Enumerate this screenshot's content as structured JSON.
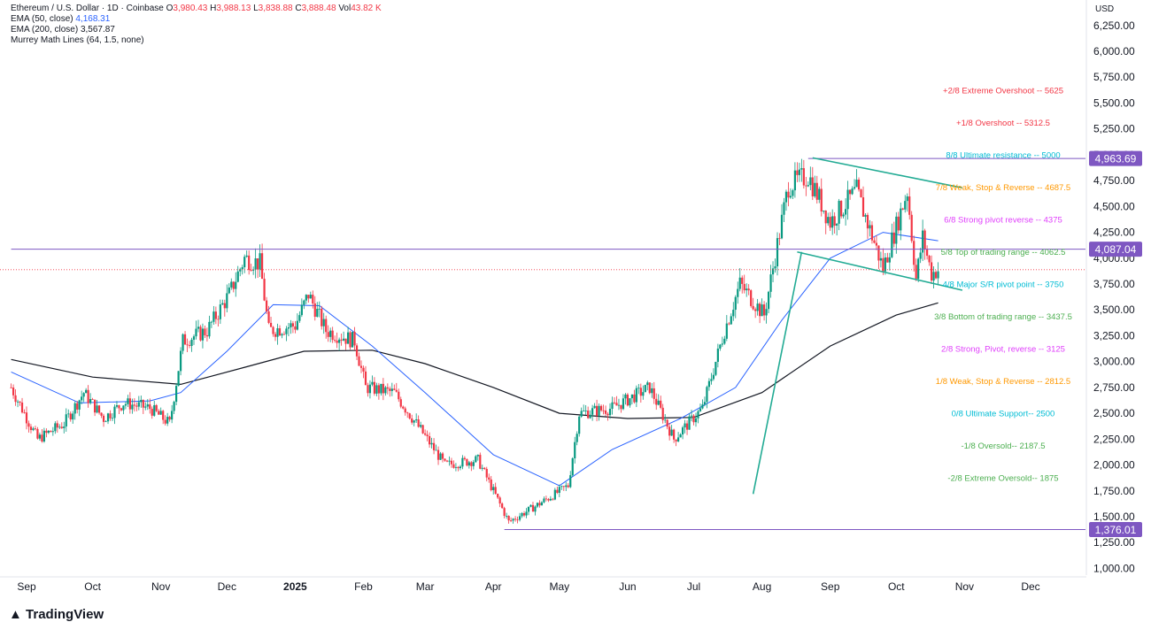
{
  "legend": {
    "title": "Ethereum / U.S. Dollar · 1D · Coinbase",
    "o_label": "O",
    "o": "3,980.43",
    "h_label": "H",
    "h": "3,988.13",
    "l_label": "L",
    "l": "3,838.88",
    "c_label": "C",
    "c": "3,888.48",
    "vol_label": "Vol",
    "vol": "43.82 K",
    "ema50_label": "EMA (50, close)",
    "ema50_value": "4,168.31",
    "ema200_label": "EMA (200, close)",
    "ema200_value": "3,567.87",
    "murrey_label": "Murrey Math Lines (64, 1.5, none)"
  },
  "currency": "USD",
  "brand": "TradingView",
  "colors": {
    "up": "#089981",
    "down": "#f23645",
    "ema50": "#2962ff",
    "ema200": "#131722",
    "trendline": "#22ab94",
    "level_line": "#7e57c2",
    "badge": "#7e57c2"
  },
  "chart_data": {
    "type": "candlestick",
    "title": "Ethereum / U.S. Dollar · 1D · Coinbase",
    "x_ticks": [
      "Sep",
      "Oct",
      "Nov",
      "Dec",
      "2025",
      "Feb",
      "Mar",
      "Apr",
      "May",
      "Jun",
      "Jul",
      "Aug",
      "Sep",
      "Oct",
      "Nov",
      "Dec"
    ],
    "y_ticks": [
      "1,000.00",
      "1,250.00",
      "1,500.00",
      "1,750.00",
      "2,000.00",
      "2,250.00",
      "2,500.00",
      "2,750.00",
      "3,000.00",
      "3,250.00",
      "3,500.00",
      "3,750.00",
      "4,000.00",
      "4,250.00",
      "4,500.00",
      "4,750.00",
      "5,000.00",
      "5,250.00",
      "5,500.00",
      "5,750.00",
      "6,000.00",
      "6,250.00"
    ],
    "ylim": [
      900,
      6300
    ],
    "grid": false,
    "close_path": [
      {
        "d": "2024-08-25",
        "p": 2750
      },
      {
        "d": "2024-09-06",
        "p": 2250
      },
      {
        "d": "2024-09-18",
        "p": 2400
      },
      {
        "d": "2024-09-27",
        "p": 2700
      },
      {
        "d": "2024-10-06",
        "p": 2450
      },
      {
        "d": "2024-10-15",
        "p": 2600
      },
      {
        "d": "2024-10-27",
        "p": 2550
      },
      {
        "d": "2024-11-05",
        "p": 2400
      },
      {
        "d": "2024-11-11",
        "p": 3200
      },
      {
        "d": "2024-11-22",
        "p": 3300
      },
      {
        "d": "2024-12-02",
        "p": 3650
      },
      {
        "d": "2024-12-09",
        "p": 4000
      },
      {
        "d": "2024-12-16",
        "p": 3950
      },
      {
        "d": "2024-12-20",
        "p": 3300
      },
      {
        "d": "2025-01-01",
        "p": 3350
      },
      {
        "d": "2025-01-07",
        "p": 3650
      },
      {
        "d": "2025-01-15",
        "p": 3300
      },
      {
        "d": "2025-01-28",
        "p": 3200
      },
      {
        "d": "2025-02-02",
        "p": 2750
      },
      {
        "d": "2025-02-15",
        "p": 2700
      },
      {
        "d": "2025-02-25",
        "p": 2400
      },
      {
        "d": "2025-03-10",
        "p": 2000
      },
      {
        "d": "2025-03-25",
        "p": 2050
      },
      {
        "d": "2025-04-08",
        "p": 1450
      },
      {
        "d": "2025-04-20",
        "p": 1600
      },
      {
        "d": "2025-05-05",
        "p": 1800
      },
      {
        "d": "2025-05-10",
        "p": 2500
      },
      {
        "d": "2025-05-25",
        "p": 2550
      },
      {
        "d": "2025-06-11",
        "p": 2750
      },
      {
        "d": "2025-06-22",
        "p": 2250
      },
      {
        "d": "2025-07-05",
        "p": 2550
      },
      {
        "d": "2025-07-15",
        "p": 3300
      },
      {
        "d": "2025-07-22",
        "p": 3750
      },
      {
        "d": "2025-08-02",
        "p": 3450
      },
      {
        "d": "2025-08-13",
        "p": 4700
      },
      {
        "d": "2025-08-22",
        "p": 4800
      },
      {
        "d": "2025-09-01",
        "p": 4350
      },
      {
        "d": "2025-09-13",
        "p": 4650
      },
      {
        "d": "2025-09-25",
        "p": 3900
      },
      {
        "d": "2025-10-06",
        "p": 4650
      },
      {
        "d": "2025-10-10",
        "p": 3800
      },
      {
        "d": "2025-10-13",
        "p": 4200
      },
      {
        "d": "2025-10-17",
        "p": 3850
      },
      {
        "d": "2025-10-20",
        "p": 3888
      }
    ],
    "ema50_path": [
      {
        "d": "2024-08-25",
        "p": 2900
      },
      {
        "d": "2024-09-25",
        "p": 2600
      },
      {
        "d": "2024-10-27",
        "p": 2620
      },
      {
        "d": "2024-11-10",
        "p": 2700
      },
      {
        "d": "2024-12-01",
        "p": 3100
      },
      {
        "d": "2024-12-22",
        "p": 3550
      },
      {
        "d": "2025-01-12",
        "p": 3540
      },
      {
        "d": "2025-02-05",
        "p": 3150
      },
      {
        "d": "2025-03-01",
        "p": 2700
      },
      {
        "d": "2025-04-01",
        "p": 2100
      },
      {
        "d": "2025-05-01",
        "p": 1800
      },
      {
        "d": "2025-05-25",
        "p": 2150
      },
      {
        "d": "2025-06-25",
        "p": 2450
      },
      {
        "d": "2025-07-20",
        "p": 2750
      },
      {
        "d": "2025-08-10",
        "p": 3400
      },
      {
        "d": "2025-09-01",
        "p": 4000
      },
      {
        "d": "2025-09-25",
        "p": 4250
      },
      {
        "d": "2025-10-20",
        "p": 4168
      }
    ],
    "ema200_path": [
      {
        "d": "2024-08-25",
        "p": 3020
      },
      {
        "d": "2024-10-01",
        "p": 2850
      },
      {
        "d": "2024-11-10",
        "p": 2780
      },
      {
        "d": "2024-12-10",
        "p": 2950
      },
      {
        "d": "2025-01-05",
        "p": 3100
      },
      {
        "d": "2025-02-05",
        "p": 3110
      },
      {
        "d": "2025-03-01",
        "p": 2980
      },
      {
        "d": "2025-04-01",
        "p": 2750
      },
      {
        "d": "2025-05-01",
        "p": 2500
      },
      {
        "d": "2025-06-01",
        "p": 2450
      },
      {
        "d": "2025-07-01",
        "p": 2460
      },
      {
        "d": "2025-08-01",
        "p": 2700
      },
      {
        "d": "2025-09-01",
        "p": 3150
      },
      {
        "d": "2025-10-01",
        "p": 3450
      },
      {
        "d": "2025-10-20",
        "p": 3568
      }
    ],
    "trendlines": [
      {
        "from": {
          "d": "2025-08-24",
          "p": 4970
        },
        "to": {
          "d": "2025-10-31",
          "p": 4680
        }
      },
      {
        "from": {
          "d": "2025-08-17",
          "p": 4060
        },
        "to": {
          "d": "2025-10-31",
          "p": 3690
        }
      },
      {
        "from": {
          "d": "2025-07-28",
          "p": 1720
        },
        "to": {
          "d": "2025-08-19",
          "p": 4060
        }
      }
    ],
    "horizontal_levels": [
      {
        "name": "4,963.69",
        "value": 4963.69,
        "from": "2025-08-22"
      },
      {
        "name": "4,087.04",
        "value": 4087.04,
        "from": "2024-08-25"
      },
      {
        "name": "1,376.01",
        "value": 1376.01,
        "from": "2025-04-06"
      }
    ],
    "last_price": 3888.48,
    "murrey_levels": [
      {
        "label": "+2/8 Extreme Overshoot --  5625",
        "value": 5625,
        "color": "#f23645"
      },
      {
        "label": "+1/8 Overshoot --  5312.5",
        "value": 5312.5,
        "color": "#f23645"
      },
      {
        "label": "8/8 Ultimate resistance --  5000",
        "value": 5000,
        "color": "#00bcd4"
      },
      {
        "label": "7/8 Weak, Stop & Reverse --  4687.5",
        "value": 4687.5,
        "color": "#ff9800"
      },
      {
        "label": "6/8 Strong pivot reverse --  4375",
        "value": 4375,
        "color": "#e040fb"
      },
      {
        "label": "5/8 Top of trading range --  4062.5",
        "value": 4062.5,
        "color": "#4caf50"
      },
      {
        "label": "4/8 Major S/R pivot point --  3750",
        "value": 3750,
        "color": "#00bcd4"
      },
      {
        "label": "3/8 Bottom of trading range --  3437.5",
        "value": 3437.5,
        "color": "#4caf50"
      },
      {
        "label": "2/8 Strong, Pivot, reverse --  3125",
        "value": 3125,
        "color": "#e040fb"
      },
      {
        "label": "1/8 Weak, Stop & Reverse --  2812.5",
        "value": 2812.5,
        "color": "#ff9800"
      },
      {
        "label": "0/8 Ultimate Support--  2500",
        "value": 2500,
        "color": "#00bcd4"
      },
      {
        "label": "-1/8 Oversold--  2187.5",
        "value": 2187.5,
        "color": "#4caf50"
      },
      {
        "label": "-2/8 Extreme Oversold--  1875",
        "value": 1875,
        "color": "#4caf50"
      }
    ]
  }
}
